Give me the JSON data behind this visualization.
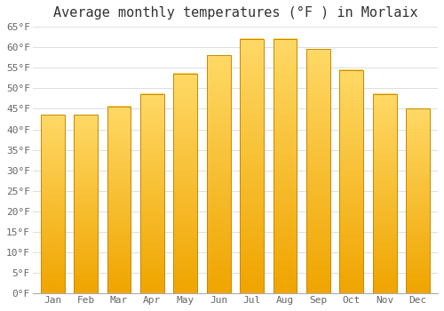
{
  "title": "Average monthly temperatures (°F ) in Morlaix",
  "categories": [
    "Jan",
    "Feb",
    "Mar",
    "Apr",
    "May",
    "Jun",
    "Jul",
    "Aug",
    "Sep",
    "Oct",
    "Nov",
    "Dec"
  ],
  "values": [
    43.5,
    43.5,
    45.5,
    48.5,
    53.5,
    58.0,
    62.0,
    62.0,
    59.5,
    54.5,
    48.5,
    45.0
  ],
  "bar_color_top": "#FFD966",
  "bar_color_bottom": "#F0A500",
  "bar_edge_color": "#C88800",
  "ylim": [
    0,
    65
  ],
  "ytick_step": 5,
  "background_color": "#FFFFFF",
  "grid_color": "#DDDDDD",
  "title_fontsize": 11,
  "tick_fontsize": 8,
  "tick_color": "#666666",
  "font_family": "monospace"
}
